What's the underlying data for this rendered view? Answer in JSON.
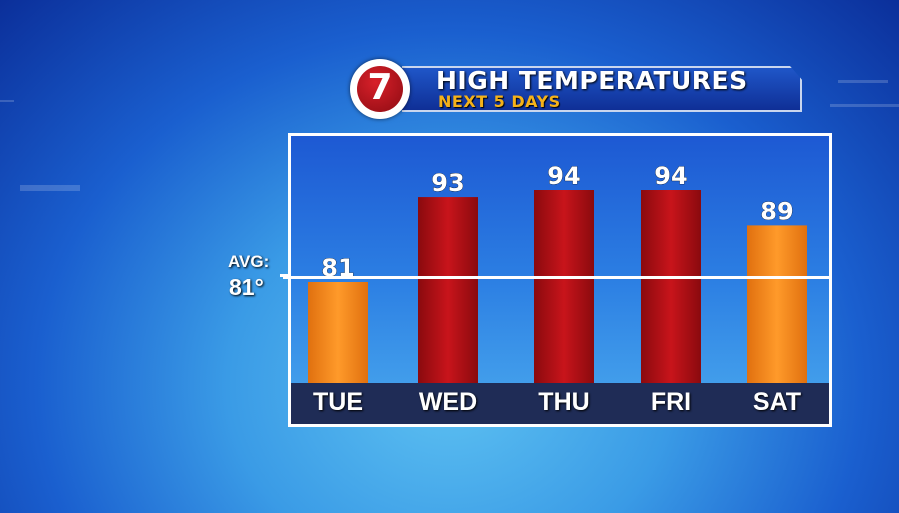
{
  "banner": {
    "logo_text": "7",
    "title": "HIGH TEMPERATURES",
    "subtitle": "NEXT 5 DAYS"
  },
  "average": {
    "label": "AVG:",
    "value_text": "81°",
    "value": 81
  },
  "colors": {
    "hot_bar": "#a80d12",
    "warm_bar": "#f0861a",
    "accent_text": "#f5b21a"
  },
  "chart_data": {
    "type": "bar",
    "title": "HIGH TEMPERATURES",
    "subtitle": "NEXT 5 DAYS",
    "categories": [
      "TUE",
      "WED",
      "THU",
      "FRI",
      "SAT"
    ],
    "values": [
      81,
      93,
      94,
      94,
      89
    ],
    "bar_colors": [
      "orange",
      "red",
      "red",
      "red",
      "orange"
    ],
    "reference_line": {
      "label": "AVG:",
      "value": 81
    },
    "grid": false,
    "legend": "none"
  }
}
